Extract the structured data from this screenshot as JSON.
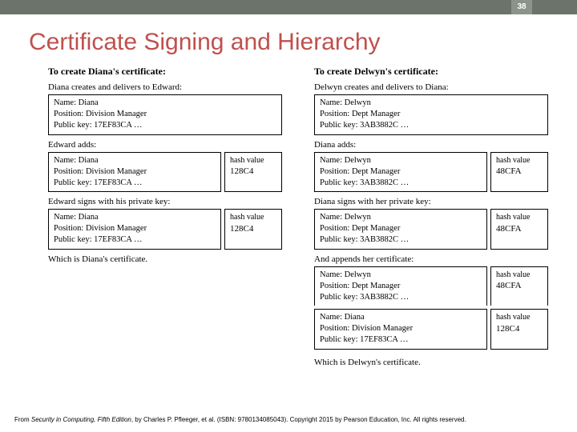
{
  "page": {
    "number": "38"
  },
  "title": "Certificate Signing and Hierarchy",
  "left": {
    "header": "To create Diana's certificate:",
    "step1_caption": "Diana creates and delivers to Edward:",
    "card1": {
      "name": "Name:   Diana",
      "position": "Position: Division Manager",
      "key": "Public key: 17EF83CA …"
    },
    "step2_caption": "Edward adds:",
    "card2": {
      "name": "Name:   Diana",
      "position": "Position: Division Manager",
      "key": "Public key: 17EF83CA …"
    },
    "hash2": {
      "label": "hash value",
      "value": "128C4"
    },
    "step3_caption": "Edward signs with his private key:",
    "card3": {
      "name": "Name:   Diana",
      "position": "Position: Division Manager",
      "key": "Public key: 17EF83CA …"
    },
    "hash3": {
      "label": "hash value",
      "value": "128C4"
    },
    "step4_caption": "Which is Diana's certificate."
  },
  "right": {
    "header": "To create Delwyn's certificate:",
    "step1_caption": "Delwyn creates and delivers to Diana:",
    "card1": {
      "name": "Name:   Delwyn",
      "position": "Position: Dept Manager",
      "key": "Public key: 3AB3882C …"
    },
    "step2_caption": "Diana adds:",
    "card2": {
      "name": "Name:   Delwyn",
      "position": "Position: Dept Manager",
      "key": "Public key: 3AB3882C …"
    },
    "hash2": {
      "label": "hash value",
      "value": "48CFA"
    },
    "step3_caption": "Diana signs with her private key:",
    "card3": {
      "name": "Name:   Delwyn",
      "position": "Position: Dept Manager",
      "key": "Public key: 3AB3882C …"
    },
    "hash3": {
      "label": "hash value",
      "value": "48CFA"
    },
    "step4_caption": "And appends her certificate:",
    "card4a": {
      "name": "Name:   Delwyn",
      "position": "Position: Dept Manager",
      "key": "Public key: 3AB3882C …"
    },
    "hash4a": {
      "label": "hash value",
      "value": "48CFA"
    },
    "card4b": {
      "name": "Name:   Diana",
      "position": "Position: Division Manager",
      "key": "Public key: 17EF83CA …"
    },
    "hash4b": {
      "label": "hash value",
      "value": "128C4"
    },
    "step5_caption": "Which is Delwyn's certificate."
  },
  "footer": {
    "prefix": "From ",
    "book": "Security in Computing, Fifth Edition",
    "rest": ", by Charles P. Pfleeger, et al. (ISBN: 9780134085043). Copyright 2015 by Pearson Education, Inc. All rights reserved."
  },
  "colors": {
    "topbar": "#6b736b",
    "pagenum_bg": "#8b9488",
    "title": "#c0504d"
  }
}
